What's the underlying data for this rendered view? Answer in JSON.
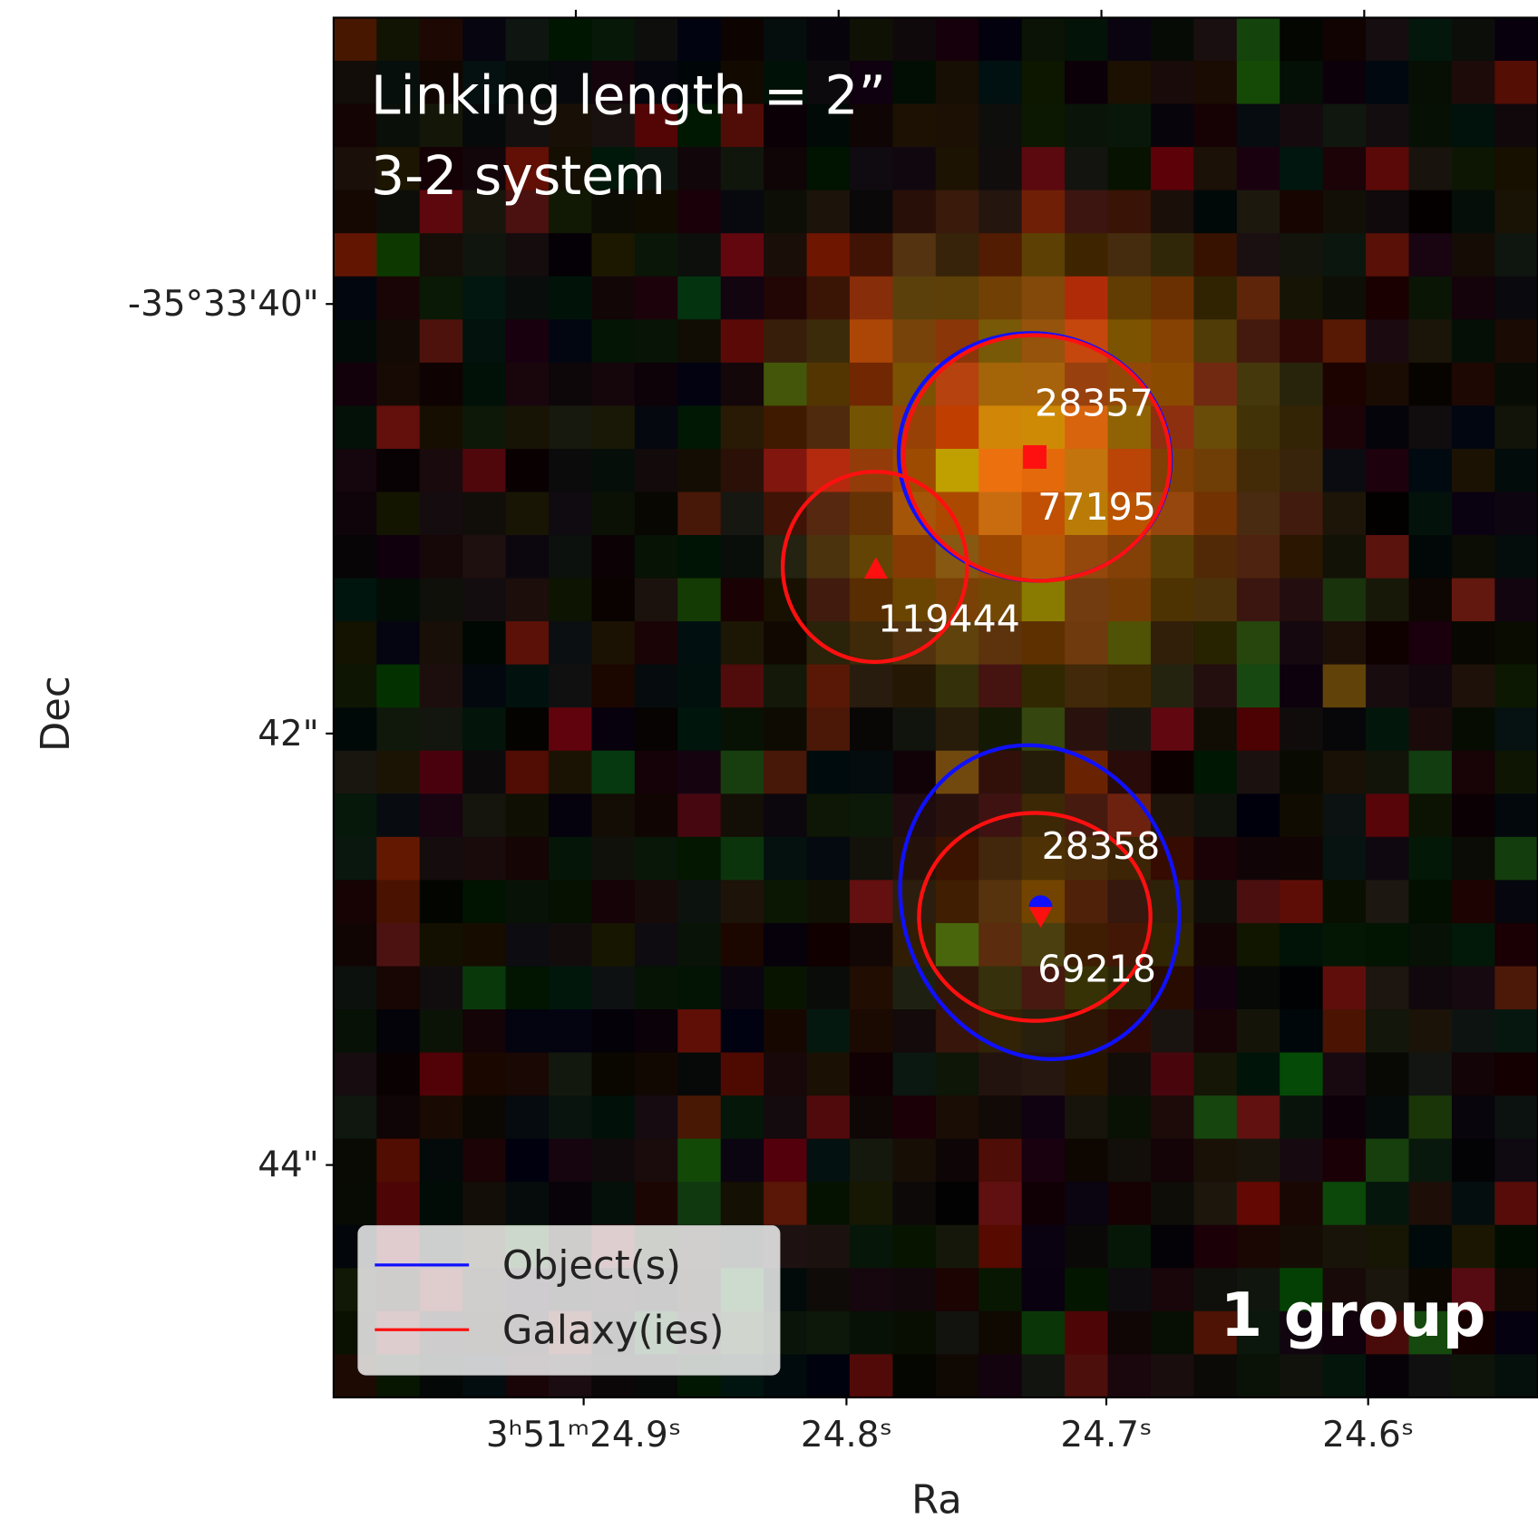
{
  "title": "Linking length = 2”",
  "subtitle": "3-2 system",
  "badge": "1 group",
  "x_axis": {
    "label": "Ra",
    "ticks": [
      "3ʰ51ᵐ24.9ˢ",
      "24.8ˢ",
      "24.7ˢ",
      "24.6ˢ"
    ]
  },
  "y_axis": {
    "label": "Dec",
    "ticks": [
      "-35°33'40\"",
      "42\"",
      "44\""
    ]
  },
  "legend": [
    "Object(s)",
    "Galaxy(ies)"
  ],
  "source_labels": [
    "28357",
    "77195",
    "119444",
    "28358",
    "69218"
  ]
}
